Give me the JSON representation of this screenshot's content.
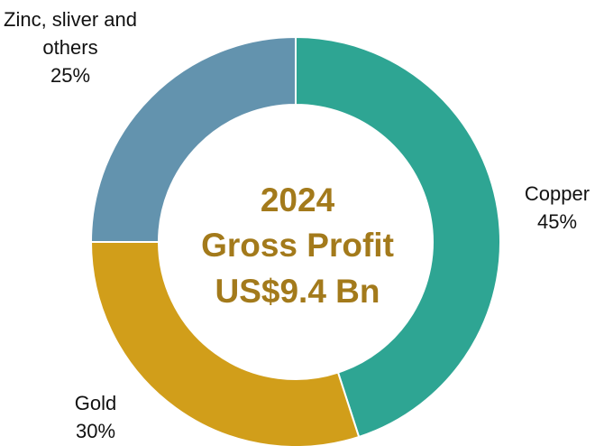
{
  "chart_data": {
    "type": "donut",
    "categories": [
      "Copper",
      "Gold",
      "Zinc, sliver and others"
    ],
    "values": [
      45,
      30,
      25
    ],
    "value_labels": [
      "45%",
      "30%",
      "25%"
    ],
    "colors": [
      "#2ea593",
      "#d19e1a",
      "#6393ae"
    ],
    "center_text": [
      "2024",
      "Gross Profit",
      "US$9.4 Bn"
    ]
  }
}
